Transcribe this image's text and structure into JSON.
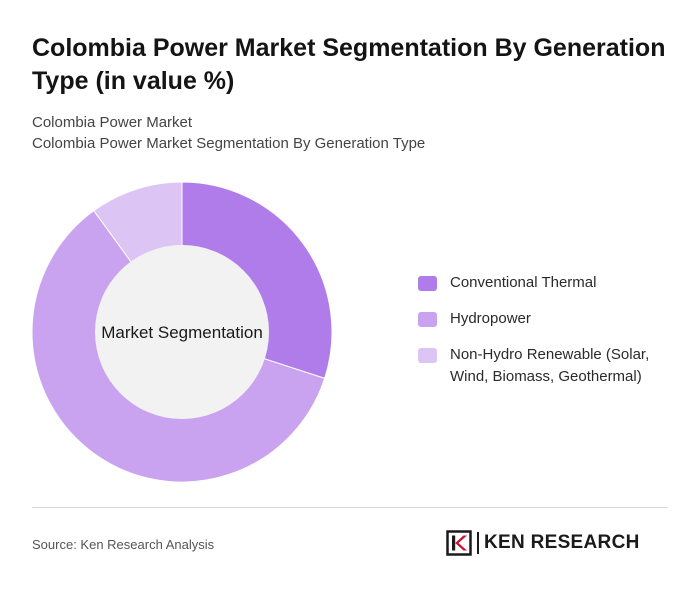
{
  "title": "Colombia Power Market Segmentation By Generation Type (in value %)",
  "subtitle_line1": "Colombia Power Market",
  "subtitle_line2": "Colombia Power Market Segmentation By Generation Type",
  "source": "Source: Ken Research Analysis",
  "logo": {
    "text": "KEN RESEARCH",
    "mark": "K"
  },
  "chart_data": {
    "type": "pie",
    "variant": "donut",
    "center_label": "Market Segmentation",
    "categories": [
      "Conventional Thermal",
      "Hydropower",
      "Non-Hydro Renewable (Solar, Wind, Biomass, Geothermal)"
    ],
    "values": [
      30,
      60,
      10
    ],
    "unit": "%",
    "colors": [
      "#b07cea",
      "#c9a3f0",
      "#dcc5f5"
    ],
    "center_color": "#f2f2f2",
    "legend_position": "right"
  }
}
